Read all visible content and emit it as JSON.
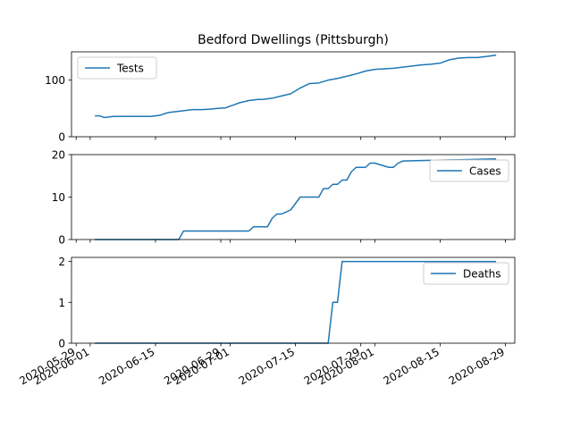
{
  "figure": {
    "title": "Bedford Dwellings (Pittsburgh)"
  },
  "colors": {
    "series": "#1f77b4",
    "axis": "#000000",
    "legend_border": "#cccccc"
  },
  "chart_data": [
    {
      "type": "line",
      "title": "Bedford Dwellings (Pittsburgh)",
      "xlabel": "",
      "ylabel": "",
      "xlim": [
        "2020-05-28",
        "2020-08-31"
      ],
      "ylim": [
        0,
        150
      ],
      "yticks": [
        0,
        100
      ],
      "yticklabels": [
        "0",
        "100"
      ],
      "legend": "upper-left",
      "grid": false,
      "series": [
        {
          "name": "Tests",
          "x": [
            "2020-06-02",
            "2020-06-03",
            "2020-06-04",
            "2020-06-05",
            "2020-06-06",
            "2020-06-08",
            "2020-06-10",
            "2020-06-12",
            "2020-06-14",
            "2020-06-15",
            "2020-06-16",
            "2020-06-17",
            "2020-06-18",
            "2020-06-19",
            "2020-06-21",
            "2020-06-23",
            "2020-06-25",
            "2020-06-27",
            "2020-06-28",
            "2020-06-30",
            "2020-07-02",
            "2020-07-03",
            "2020-07-05",
            "2020-07-07",
            "2020-07-08",
            "2020-07-10",
            "2020-07-12",
            "2020-07-14",
            "2020-07-16",
            "2020-07-18",
            "2020-07-20",
            "2020-07-22",
            "2020-07-24",
            "2020-07-26",
            "2020-07-28",
            "2020-07-30",
            "2020-08-01",
            "2020-08-03",
            "2020-08-05",
            "2020-08-07",
            "2020-08-09",
            "2020-08-11",
            "2020-08-13",
            "2020-08-15",
            "2020-08-17",
            "2020-08-19",
            "2020-08-21",
            "2020-08-23",
            "2020-08-25",
            "2020-08-27"
          ],
          "values": [
            37,
            37,
            34,
            35,
            36,
            36,
            36,
            36,
            36,
            37,
            38,
            41,
            43,
            44,
            46,
            48,
            48,
            49,
            50,
            51,
            57,
            60,
            64,
            66,
            66,
            68,
            72,
            76,
            86,
            94,
            95,
            100,
            103,
            107,
            111,
            116,
            119,
            120,
            121,
            123,
            125,
            127,
            128,
            130,
            136,
            139,
            140,
            140,
            142,
            144
          ]
        }
      ]
    },
    {
      "type": "line",
      "xlabel": "",
      "ylabel": "",
      "xlim": [
        "2020-05-28",
        "2020-08-31"
      ],
      "ylim": [
        0,
        20
      ],
      "yticks": [
        0,
        10,
        20
      ],
      "yticklabels": [
        "0",
        "10",
        "20"
      ],
      "legend": "upper-right",
      "grid": false,
      "series": [
        {
          "name": "Cases",
          "x": [
            "2020-06-02",
            "2020-06-20",
            "2020-06-21",
            "2020-07-05",
            "2020-07-06",
            "2020-07-09",
            "2020-07-10",
            "2020-07-11",
            "2020-07-12",
            "2020-07-13",
            "2020-07-14",
            "2020-07-16",
            "2020-07-17",
            "2020-07-20",
            "2020-07-21",
            "2020-07-22",
            "2020-07-23",
            "2020-07-24",
            "2020-07-25",
            "2020-07-26",
            "2020-07-27",
            "2020-07-28",
            "2020-07-30",
            "2020-07-31",
            "2020-08-01",
            "2020-08-04",
            "2020-08-05",
            "2020-08-06",
            "2020-08-07",
            "2020-08-27"
          ],
          "values": [
            0,
            0,
            2,
            2,
            3,
            3,
            5,
            6,
            6,
            6.5,
            7,
            10,
            10,
            10,
            12,
            12,
            13,
            13,
            14,
            14,
            16,
            17,
            17,
            18,
            18,
            17,
            17,
            18,
            18.5,
            19
          ]
        }
      ]
    },
    {
      "type": "line",
      "xlabel": "",
      "ylabel": "",
      "xlim": [
        "2020-05-28",
        "2020-08-31"
      ],
      "ylim": [
        0,
        2.1
      ],
      "yticks": [
        0,
        1,
        2
      ],
      "yticklabels": [
        "0",
        "1",
        "2"
      ],
      "legend": "upper-right",
      "grid": false,
      "xticks": [
        "2020-05-29",
        "2020-06-01",
        "2020-06-15",
        "2020-06-29",
        "2020-07-01",
        "2020-07-15",
        "2020-07-29",
        "2020-08-01",
        "2020-08-15",
        "2020-08-29"
      ],
      "xticklabels": [
        "2020-05-29",
        "2020-06-01",
        "2020-06-15",
        "2020-06-29",
        "2020-07-01",
        "2020-07-15",
        "2020-07-29",
        "2020-08-01",
        "2020-08-15",
        "2020-08-29"
      ],
      "series": [
        {
          "name": "Deaths",
          "x": [
            "2020-06-02",
            "2020-07-22",
            "2020-07-23",
            "2020-07-24",
            "2020-07-25",
            "2020-08-27"
          ],
          "values": [
            0,
            0,
            1,
            1,
            2,
            2
          ]
        }
      ]
    }
  ]
}
